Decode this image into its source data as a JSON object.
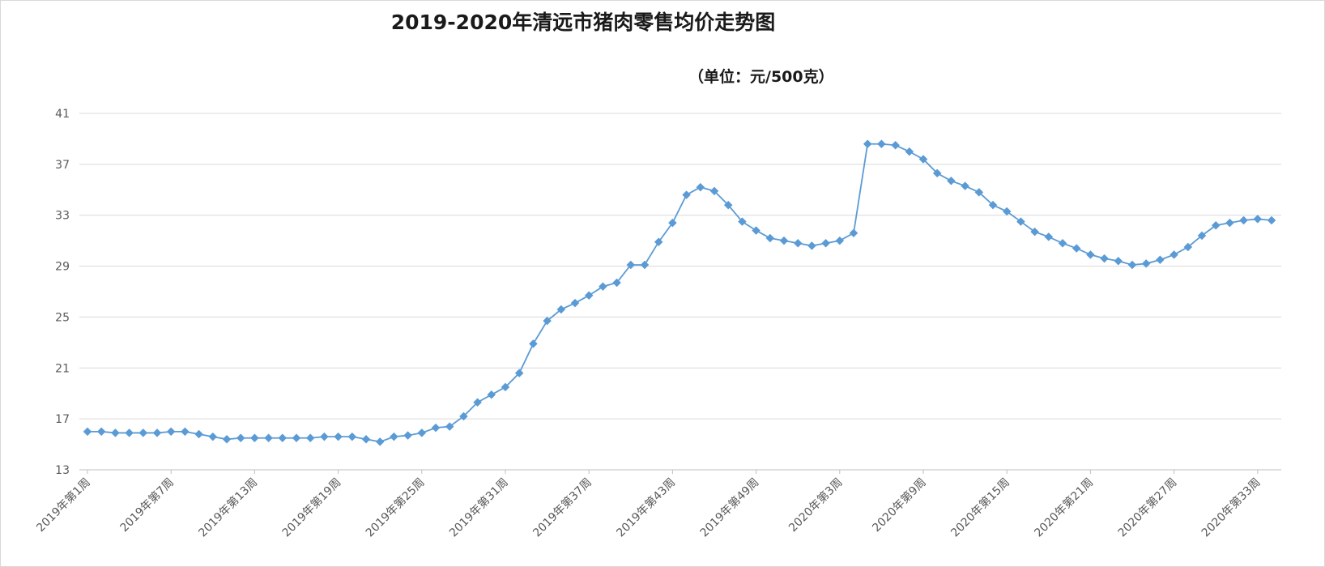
{
  "chart_data": {
    "type": "line",
    "title": "2019-2020年清远市猪肉零售均价走势图",
    "unit_note": "（单位：元/500克）",
    "xlabel": "",
    "ylabel": "",
    "ylim": [
      13,
      41
    ],
    "yticks": [
      13,
      17,
      21,
      25,
      29,
      33,
      37,
      41
    ],
    "grid": true,
    "legend": "none",
    "line_color": "#5b9bd5",
    "marker": "diamond",
    "tick_labels": [
      {
        "index": 0,
        "label": "2019年第1周"
      },
      {
        "index": 6,
        "label": "2019年第7周"
      },
      {
        "index": 12,
        "label": "2019年第13周"
      },
      {
        "index": 18,
        "label": "2019年第19周"
      },
      {
        "index": 24,
        "label": "2019年第25周"
      },
      {
        "index": 30,
        "label": "2019年第31周"
      },
      {
        "index": 36,
        "label": "2019年第37周"
      },
      {
        "index": 42,
        "label": "2019年第43周"
      },
      {
        "index": 48,
        "label": "2019年第49周"
      },
      {
        "index": 54,
        "label": "2020年第3周"
      },
      {
        "index": 60,
        "label": "2020年第9周"
      },
      {
        "index": 66,
        "label": "2020年第15周"
      },
      {
        "index": 72,
        "label": "2020年第21周"
      },
      {
        "index": 78,
        "label": "2020年第27周"
      },
      {
        "index": 84,
        "label": "2020年第33周"
      }
    ],
    "series": [
      {
        "values": [
          16.0,
          16.0,
          15.9,
          15.9,
          15.9,
          15.9,
          16.0,
          16.0,
          15.8,
          15.6,
          15.4,
          15.5,
          15.5,
          15.5,
          15.5,
          15.5,
          15.5,
          15.6,
          15.6,
          15.6,
          15.4,
          15.2,
          15.6,
          15.7,
          15.9,
          16.3,
          16.4,
          17.2,
          18.3,
          18.9,
          19.5,
          20.6,
          22.9,
          24.7,
          25.6,
          26.1,
          26.7,
          27.4,
          27.7,
          29.1,
          29.1,
          30.9,
          32.4,
          34.6,
          35.2,
          34.9,
          33.8,
          32.5,
          31.8,
          31.2,
          31.0,
          30.8,
          30.6,
          30.8,
          31.0,
          31.6,
          38.6,
          38.6,
          38.5,
          38.0,
          37.4,
          36.3,
          35.7,
          35.3,
          34.8,
          33.8,
          33.3,
          32.5,
          31.7,
          31.3,
          30.8,
          30.4,
          29.9,
          29.6,
          29.4,
          29.1,
          29.2,
          29.5,
          29.9,
          30.5,
          31.4,
          32.2,
          32.4,
          32.6,
          32.7,
          32.6
        ]
      }
    ]
  }
}
